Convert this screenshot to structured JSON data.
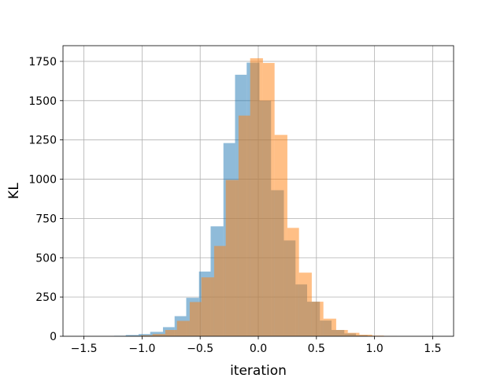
{
  "chart_data": {
    "type": "bar",
    "title": "",
    "xlabel": "iteration",
    "ylabel": "KL",
    "xlim": [
      -1.68,
      1.68
    ],
    "ylim": [
      0,
      1850
    ],
    "grid": true,
    "legend": "none",
    "xticks": [
      -1.5,
      -1.0,
      -0.5,
      0.0,
      0.5,
      1.0,
      1.5
    ],
    "xtick_labels": [
      "−1.5",
      "−1.0",
      "−0.5",
      "0.0",
      "0.5",
      "1.0",
      "1.5"
    ],
    "yticks": [
      0,
      250,
      500,
      750,
      1000,
      1250,
      1500,
      1750
    ],
    "ytick_labels": [
      "0",
      "250",
      "500",
      "750",
      "1000",
      "1250",
      "1500",
      "1750"
    ],
    "series": [
      {
        "color": "#1f77b4",
        "opacity": 0.5,
        "bins": [
          {
            "x0": -1.24,
            "x1": -1.14,
            "value": 3
          },
          {
            "x0": -1.14,
            "x1": -1.03,
            "value": 8
          },
          {
            "x0": -1.03,
            "x1": -0.93,
            "value": 14
          },
          {
            "x0": -0.93,
            "x1": -0.82,
            "value": 28
          },
          {
            "x0": -0.82,
            "x1": -0.72,
            "value": 58
          },
          {
            "x0": -0.72,
            "x1": -0.62,
            "value": 128
          },
          {
            "x0": -0.62,
            "x1": -0.51,
            "value": 245
          },
          {
            "x0": -0.51,
            "x1": -0.41,
            "value": 412
          },
          {
            "x0": -0.41,
            "x1": -0.3,
            "value": 700
          },
          {
            "x0": -0.3,
            "x1": -0.2,
            "value": 1230
          },
          {
            "x0": -0.2,
            "x1": -0.1,
            "value": 1665
          },
          {
            "x0": -0.1,
            "x1": 0.01,
            "value": 1742
          },
          {
            "x0": 0.01,
            "x1": 0.11,
            "value": 1500
          },
          {
            "x0": 0.11,
            "x1": 0.22,
            "value": 930
          },
          {
            "x0": 0.22,
            "x1": 0.32,
            "value": 610
          },
          {
            "x0": 0.32,
            "x1": 0.42,
            "value": 330
          },
          {
            "x0": 0.42,
            "x1": 0.53,
            "value": 220
          },
          {
            "x0": 0.53,
            "x1": 0.63,
            "value": 100
          },
          {
            "x0": 0.63,
            "x1": 0.74,
            "value": 40
          },
          {
            "x0": 0.74,
            "x1": 0.84,
            "value": 18
          },
          {
            "x0": 0.84,
            "x1": 0.94,
            "value": 6
          },
          {
            "x0": 0.94,
            "x1": 1.05,
            "value": 2
          }
        ]
      },
      {
        "color": "#ff7f0e",
        "opacity": 0.5,
        "bins": [
          {
            "x0": -1.12,
            "x1": -1.01,
            "value": 2
          },
          {
            "x0": -1.01,
            "x1": -0.91,
            "value": 6
          },
          {
            "x0": -0.91,
            "x1": -0.8,
            "value": 14
          },
          {
            "x0": -0.8,
            "x1": -0.7,
            "value": 40
          },
          {
            "x0": -0.7,
            "x1": -0.59,
            "value": 98
          },
          {
            "x0": -0.59,
            "x1": -0.49,
            "value": 218
          },
          {
            "x0": -0.49,
            "x1": -0.38,
            "value": 375
          },
          {
            "x0": -0.38,
            "x1": -0.28,
            "value": 575
          },
          {
            "x0": -0.28,
            "x1": -0.17,
            "value": 995
          },
          {
            "x0": -0.17,
            "x1": -0.07,
            "value": 1405
          },
          {
            "x0": -0.07,
            "x1": 0.04,
            "value": 1770
          },
          {
            "x0": 0.04,
            "x1": 0.14,
            "value": 1740
          },
          {
            "x0": 0.14,
            "x1": 0.25,
            "value": 1282
          },
          {
            "x0": 0.25,
            "x1": 0.35,
            "value": 690
          },
          {
            "x0": 0.35,
            "x1": 0.46,
            "value": 405
          },
          {
            "x0": 0.46,
            "x1": 0.56,
            "value": 220
          },
          {
            "x0": 0.56,
            "x1": 0.67,
            "value": 112
          },
          {
            "x0": 0.67,
            "x1": 0.77,
            "value": 40
          },
          {
            "x0": 0.77,
            "x1": 0.87,
            "value": 22
          },
          {
            "x0": 0.87,
            "x1": 0.98,
            "value": 10
          },
          {
            "x0": 0.98,
            "x1": 1.08,
            "value": 4
          },
          {
            "x0": 1.08,
            "x1": 1.19,
            "value": 1
          }
        ]
      }
    ]
  }
}
